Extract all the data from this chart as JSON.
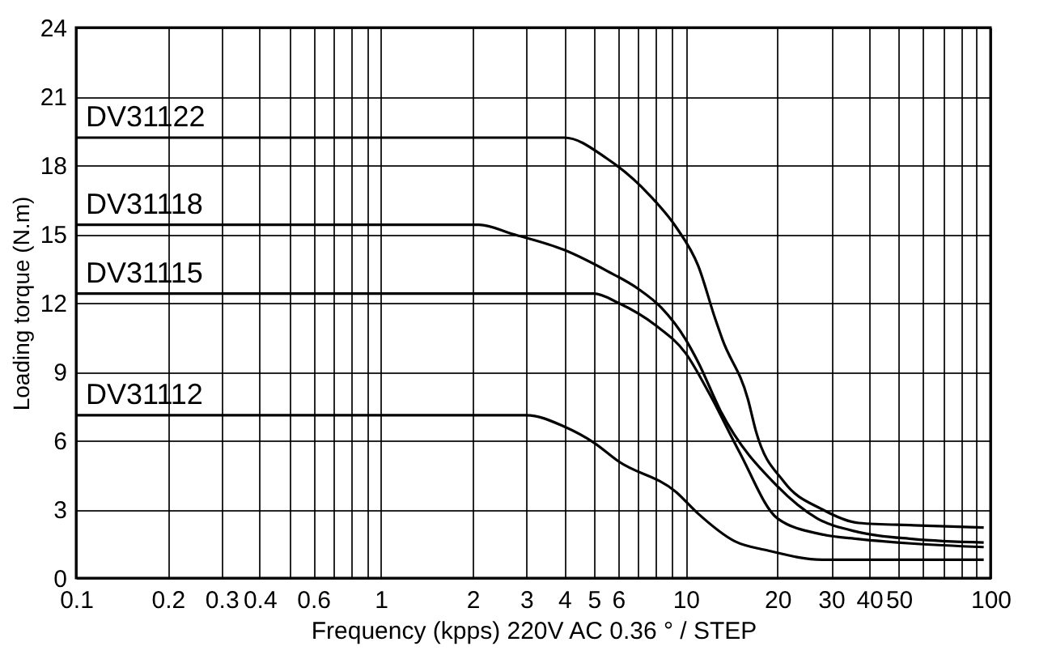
{
  "chart_data": {
    "type": "line",
    "xlabel": "Frequency (kpps) 220V AC 0.36 ° / STEP",
    "ylabel": "Loading torque (N.m)",
    "log": "x",
    "grid": true,
    "legend": false,
    "marker": "none",
    "line_style": "solid",
    "xlim": [
      0.1,
      100
    ],
    "ylim": [
      0,
      24
    ],
    "xticks": [
      0.1,
      0.2,
      0.3,
      0.4,
      {
        "value": 0.5,
        "label": null
      },
      0.6,
      {
        "value": 0.7,
        "label": null
      },
      {
        "value": 0.8,
        "label": null
      },
      {
        "value": 0.9,
        "label": null
      },
      1,
      2,
      3,
      4,
      5,
      6,
      {
        "value": 7,
        "label": null
      },
      {
        "value": 8,
        "label": null
      },
      {
        "value": 9,
        "label": null
      },
      10,
      20,
      30,
      40,
      50,
      {
        "value": 60,
        "label": null
      },
      {
        "value": 70,
        "label": null
      },
      {
        "value": 80,
        "label": null
      },
      {
        "value": 90,
        "label": null
      },
      100
    ],
    "yticks": [
      0,
      3,
      6,
      9,
      12,
      15,
      18,
      21,
      24
    ],
    "series": [
      {
        "name": "DV31122",
        "color": "#000000",
        "x": [
          0.1,
          4,
          5.5,
          7.6,
          9.3,
          11,
          12.5,
          13.2,
          16,
          17,
          21,
          28,
          37,
          56,
          95
        ],
        "values": [
          19.2,
          19.2,
          18.3,
          16.7,
          15.3,
          13.6,
          11.3,
          10.4,
          7.8,
          6.4,
          4.2,
          3.0,
          2.4,
          2.3,
          2.2
        ]
      },
      {
        "name": "DV31118",
        "color": "#000000",
        "x": [
          0.1,
          2.1,
          2.7,
          4,
          5.5,
          7,
          8.3,
          10,
          11,
          13,
          20,
          27,
          37,
          56,
          95
        ],
        "values": [
          15.4,
          15.4,
          15.0,
          14.3,
          13.4,
          12.6,
          11.8,
          10.4,
          9.4,
          7.3,
          4.0,
          2.6,
          2.0,
          1.7,
          1.55
        ]
      },
      {
        "name": "DV31115",
        "color": "#000000",
        "x": [
          0.1,
          5,
          6,
          8,
          10,
          12,
          15,
          20,
          28,
          37,
          56,
          95
        ],
        "values": [
          12.4,
          12.4,
          12.0,
          11.0,
          9.8,
          8.0,
          5.5,
          2.6,
          1.9,
          1.7,
          1.5,
          1.35
        ]
      },
      {
        "name": "DV31112",
        "color": "#000000",
        "x": [
          0.1,
          3,
          4,
          5,
          6,
          9.3,
          11,
          14.5,
          18.6,
          28,
          95
        ],
        "values": [
          7.1,
          7.1,
          6.6,
          5.9,
          5.1,
          3.75,
          2.8,
          1.6,
          1.2,
          0.8,
          0.8
        ]
      }
    ]
  }
}
